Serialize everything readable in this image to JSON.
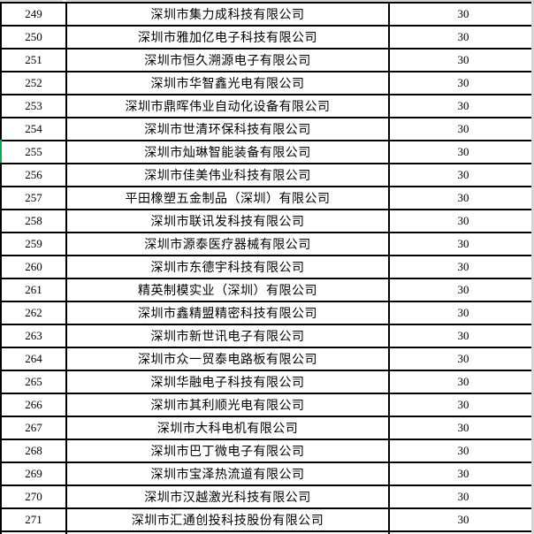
{
  "table": {
    "value_column_note": "value shown for every visible row",
    "rows": [
      {
        "no": "249",
        "company": "深圳市集力成科技有限公司",
        "value": "30"
      },
      {
        "no": "250",
        "company": "深圳市雅加亿电子科技有限公司",
        "value": "30"
      },
      {
        "no": "251",
        "company": "深圳市恒久溯源电子有限公司",
        "value": "30"
      },
      {
        "no": "252",
        "company": "深圳市华智鑫光电有限公司",
        "value": "30"
      },
      {
        "no": "253",
        "company": "深圳市鼎晖伟业自动化设备有限公司",
        "value": "30"
      },
      {
        "no": "254",
        "company": "深圳市世清环保科技有限公司",
        "value": "30"
      },
      {
        "no": "255",
        "company": "深圳市灿琳智能装备有限公司",
        "value": "30"
      },
      {
        "no": "256",
        "company": "深圳市佳美伟业科技有限公司",
        "value": "30"
      },
      {
        "no": "257",
        "company": "平田橡塑五金制品（深圳）有限公司",
        "value": "30"
      },
      {
        "no": "258",
        "company": "深圳市联讯发科技有限公司",
        "value": "30"
      },
      {
        "no": "259",
        "company": "深圳市源泰医疗器械有限公司",
        "value": "30"
      },
      {
        "no": "260",
        "company": "深圳市东德宇科技有限公司",
        "value": "30"
      },
      {
        "no": "261",
        "company": "精英制模实业（深圳）有限公司",
        "value": "30"
      },
      {
        "no": "262",
        "company": "深圳市鑫精盟精密科技有限公司",
        "value": "30"
      },
      {
        "no": "263",
        "company": "深圳市新世讯电子有限公司",
        "value": "30"
      },
      {
        "no": "264",
        "company": "深圳市众一贸泰电路板有限公司",
        "value": "30"
      },
      {
        "no": "265",
        "company": "深圳华融电子科技有限公司",
        "value": "30"
      },
      {
        "no": "266",
        "company": "深圳市其利顺光电有限公司",
        "value": "30"
      },
      {
        "no": "267",
        "company": "深圳市大科电机有限公司",
        "value": "30"
      },
      {
        "no": "268",
        "company": "深圳市巴丁微电子有限公司",
        "value": "30"
      },
      {
        "no": "269",
        "company": "深圳市宝泽热流道有限公司",
        "value": "30"
      },
      {
        "no": "270",
        "company": "深圳市汉越激光科技有限公司",
        "value": "30"
      },
      {
        "no": "271",
        "company": "深圳市汇通创投科技股份有限公司",
        "value": "30"
      }
    ],
    "marker_row_number": "255"
  },
  "colors": {
    "border": "#000000",
    "cell_background": "#ffffff",
    "edge_gray": "#d4d4d4",
    "row_marker_green": "#00b050"
  }
}
